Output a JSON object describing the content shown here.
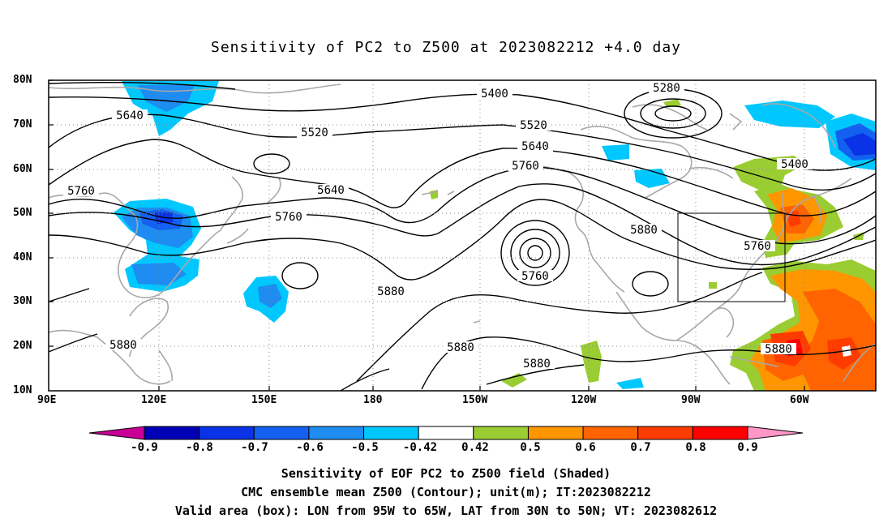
{
  "title": "Sensitivity of PC2 to Z500 at 2023082212 +4.0 day",
  "axes": {
    "lat_labels": [
      "80N",
      "70N",
      "60N",
      "50N",
      "40N",
      "30N",
      "20N",
      "10N"
    ],
    "lon_labels": [
      "90E",
      "120E",
      "150E",
      "180",
      "150W",
      "120W",
      "90W",
      "60W"
    ]
  },
  "contour_labels": [
    "5280",
    "5400",
    "5400",
    "5520",
    "5520",
    "5640",
    "5640",
    "5640",
    "5760",
    "5760",
    "5760",
    "5760",
    "5760",
    "5880",
    "5880",
    "5880",
    "5880",
    "5880",
    "5880"
  ],
  "colorbar": {
    "labels": [
      "-0.9",
      "-0.8",
      "-0.7",
      "-0.6",
      "-0.5",
      "-0.42",
      "0.42",
      "0.5",
      "0.6",
      "0.7",
      "0.8",
      "0.9"
    ],
    "colors": [
      "#0000b4",
      "#0a32e6",
      "#1460f0",
      "#1e8cf0",
      "#00c8ff",
      "#ffffff",
      "#9acd32",
      "#ff9600",
      "#ff6400",
      "#ff3c00",
      "#ff0000"
    ],
    "end_low": "#c80096",
    "end_high": "#ff96c8"
  },
  "captions": {
    "line1": "Sensitivity of EOF PC2 to Z500 field (Shaded)",
    "line2": "CMC ensemble mean Z500 (Contour); unit(m); IT:2023082212",
    "line3": "Valid area (box): LON from 95W to 65W, LAT from 30N to 50N; VT: 2023082612"
  }
}
